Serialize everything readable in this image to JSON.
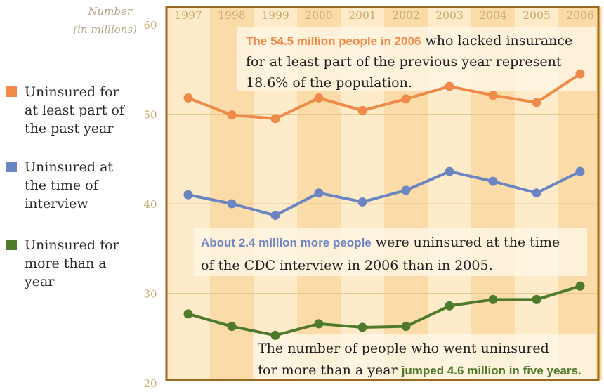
{
  "chart_data": {
    "type": "line",
    "ylabel": [
      "Number",
      "(in millions)"
    ],
    "x": [
      "1997",
      "1998",
      "1999",
      "2000",
      "2001",
      "2002",
      "2003",
      "2004",
      "2005",
      "2006"
    ],
    "ylim": [
      20,
      60
    ],
    "yticks": [
      "20",
      "30",
      "40",
      "50",
      "60"
    ],
    "series": [
      {
        "name": "Uninsured for at least part of the past year",
        "name_lines": [
          "Uninsured for",
          "at least part of",
          "the past year"
        ],
        "color": "#f08a48",
        "values": [
          51.8,
          49.9,
          49.5,
          51.8,
          50.4,
          51.7,
          53.1,
          52.1,
          51.3,
          54.5
        ]
      },
      {
        "name": "Uninsured at the time of interview",
        "name_lines": [
          "Uninsured at",
          "the time of",
          "interview"
        ],
        "color": "#6b84c2",
        "values": [
          41.0,
          40.0,
          38.7,
          41.2,
          40.2,
          41.5,
          43.6,
          42.5,
          41.2,
          43.6
        ]
      },
      {
        "name": "Uninsured for more than a year",
        "name_lines": [
          "Uninsured for",
          "more than a",
          "year"
        ],
        "color": "#4e7a2c",
        "values": [
          27.7,
          26.3,
          25.3,
          26.6,
          26.2,
          26.3,
          28.6,
          29.3,
          29.3,
          30.8
        ]
      }
    ],
    "annotations": [
      {
        "lines": [
          [
            {
              "text": "The 54.5 million people in 2006",
              "hl": "orange"
            },
            {
              "text": " who lacked insurance"
            }
          ],
          [
            {
              "text": "for at least part of the previous year represent"
            }
          ],
          [
            {
              "text": "18.6% of the population."
            }
          ]
        ]
      },
      {
        "lines": [
          [
            {
              "text": "About 2.4 million more people",
              "hl": "blue"
            },
            {
              "text": " were uninsured at the time"
            }
          ],
          [
            {
              "text": "of the CDC interview in 2006 than in 2005."
            }
          ]
        ]
      },
      {
        "lines": [
          [
            {
              "text": "The number of people who went uninsured"
            }
          ],
          [
            {
              "text": "for more than a year "
            },
            {
              "text": "jumped 4.6 million in five years.",
              "hl": "green"
            }
          ]
        ]
      }
    ],
    "colors": {
      "background": "#fdebc9",
      "stripe": "#fbdca9",
      "frame": "#9b6a1f",
      "grid": "#e6c98f",
      "annotation_box": "#fff6e6",
      "highlight_orange": "#f08a48",
      "highlight_blue": "#6b84c2",
      "highlight_green": "#4e7a2c"
    },
    "grid": true,
    "legend_position": "left"
  }
}
